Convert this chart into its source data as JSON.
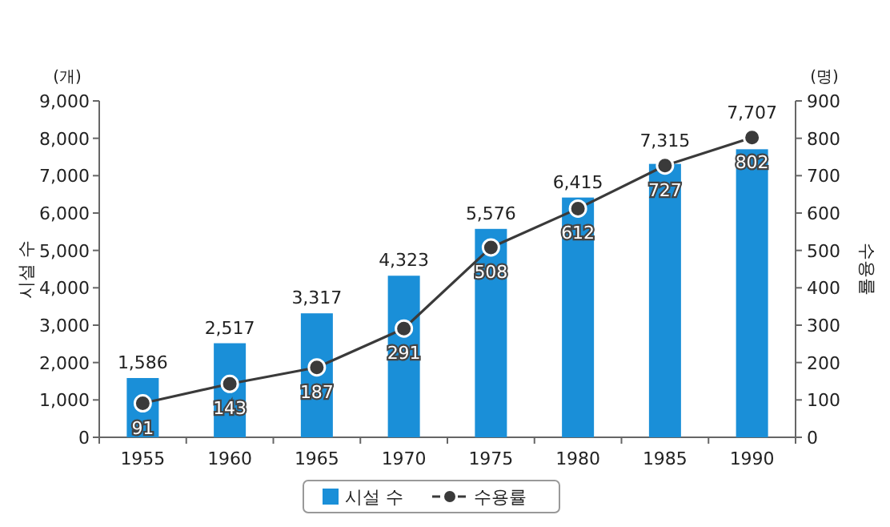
{
  "chart_data": {
    "type": "bar",
    "categories": [
      "1955",
      "1960",
      "1965",
      "1970",
      "1975",
      "1980",
      "1985",
      "1990"
    ],
    "series": [
      {
        "name": "시설 수",
        "color": "#1a8fd8",
        "values": [
          1586,
          2517,
          3317,
          4323,
          5576,
          6415,
          7315,
          7707
        ],
        "value_labels": [
          "1,586",
          "2,517",
          "3,317",
          "4,323",
          "5,576",
          "6,415",
          "7,315",
          "7,707"
        ]
      },
      {
        "name": "수용률",
        "type": "line",
        "axis": "y2",
        "color": "#3a3a3a",
        "marker": "circle",
        "values": [
          91,
          143,
          187,
          291,
          508,
          612,
          727,
          802
        ]
      }
    ],
    "ylabel": "시설 수",
    "y2label": "수용률",
    "annotations": [
      "(개)",
      "(명)"
    ],
    "ylim": [
      0,
      9000
    ],
    "yticks": [
      0,
      {
        "value": 1000,
        "label": "1,000"
      },
      {
        "value": 2000,
        "label": "2,000"
      },
      {
        "value": 3000,
        "label": "3,000"
      },
      {
        "value": 4000,
        "label": "4,000"
      },
      {
        "value": 5000,
        "label": "5,000"
      },
      {
        "value": 6000,
        "label": "6,000"
      },
      {
        "value": 7000,
        "label": "7,000"
      },
      {
        "value": 8000,
        "label": "8,000"
      },
      {
        "value": 9000,
        "label": "9,000"
      }
    ],
    "y2lim": [
      0,
      900
    ],
    "y2ticks": [
      0,
      100,
      200,
      300,
      400,
      500,
      600,
      700,
      800,
      900
    ],
    "data_labels": true,
    "grid": false,
    "legend": "bottom"
  }
}
